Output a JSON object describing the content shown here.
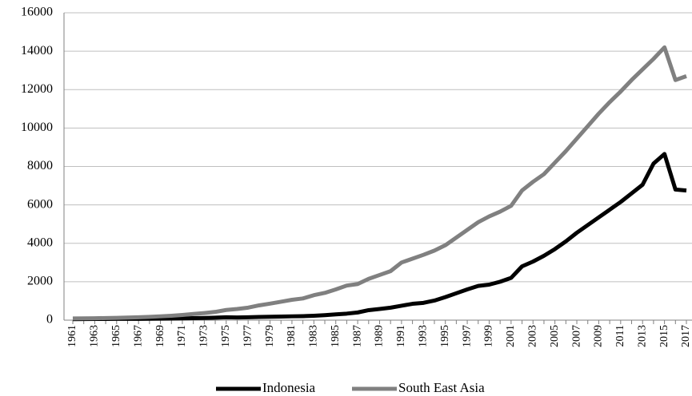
{
  "chart_data": {
    "type": "line",
    "categories": [
      "1961",
      null,
      "1963",
      null,
      "1965",
      null,
      "1967",
      null,
      "1969",
      null,
      "1971",
      null,
      "1973",
      null,
      "1975",
      null,
      "1977",
      null,
      "1979",
      null,
      "1981",
      null,
      "1983",
      null,
      "1985",
      null,
      "1987",
      null,
      "1989",
      null,
      "1991",
      null,
      "1993",
      null,
      "1995",
      null,
      "1997",
      null,
      "1999",
      null,
      "2001",
      null,
      "2003",
      null,
      "2005",
      null,
      "2007",
      null,
      "2009",
      null,
      "2011",
      null,
      "2013",
      null,
      "2015",
      null,
      "2017"
    ],
    "series": [
      {
        "name": "Indonesia",
        "color": "#000000",
        "values": [
          50,
          55,
          60,
          62,
          65,
          68,
          70,
          75,
          80,
          85,
          95,
          105,
          115,
          130,
          150,
          140,
          150,
          165,
          175,
          185,
          200,
          210,
          230,
          260,
          300,
          340,
          400,
          520,
          580,
          650,
          750,
          850,
          900,
          1020,
          1200,
          1400,
          1600,
          1780,
          1850,
          2000,
          2200,
          2800,
          3050,
          3350,
          3700,
          4100,
          4550,
          4950,
          5350,
          5750,
          6150,
          6600,
          7050,
          8150,
          8650,
          6800,
          6750
        ]
      },
      {
        "name": "South East Asia",
        "color": "#808080",
        "values": [
          90,
          95,
          100,
          110,
          120,
          135,
          150,
          170,
          200,
          230,
          270,
          320,
          370,
          430,
          530,
          580,
          650,
          770,
          860,
          960,
          1060,
          1130,
          1300,
          1420,
          1600,
          1800,
          1880,
          2150,
          2350,
          2550,
          3000,
          3200,
          3400,
          3620,
          3900,
          4300,
          4700,
          5100,
          5400,
          5650,
          5950,
          6750,
          7200,
          7600,
          8200,
          8800,
          9450,
          10100,
          10750,
          11350,
          11900,
          12500,
          13050,
          13600,
          14200,
          12500,
          12700
        ]
      }
    ],
    "ylim": [
      0,
      16000
    ],
    "yticks": [
      0,
      2000,
      4000,
      6000,
      8000,
      10000,
      12000,
      14000,
      16000
    ],
    "grid": true
  }
}
